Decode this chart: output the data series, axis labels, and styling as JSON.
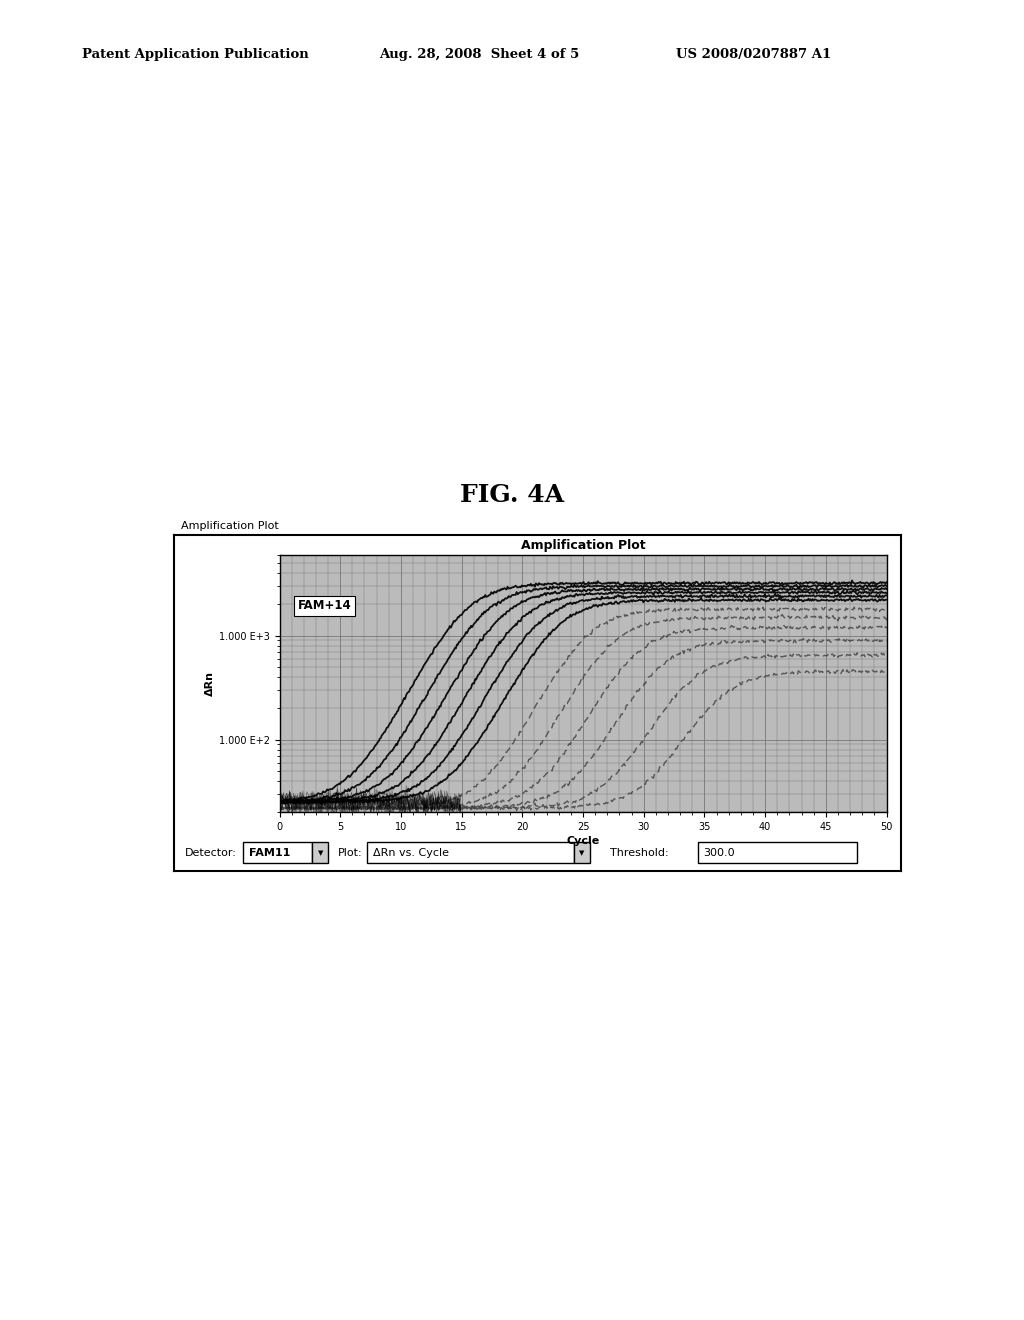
{
  "page_title_left": "Patent Application Publication",
  "page_title_center": "Aug. 28, 2008  Sheet 4 of 5",
  "page_title_right": "US 2008/0207887 A1",
  "fig_label": "FIG. 4A",
  "outer_box_label": "Amplification Plot",
  "inner_title": "Amplification Plot",
  "fam_label": "FAM+14",
  "xlabel": "Cycle",
  "ylabel": "ΔRn",
  "detector_text": "Detector:",
  "detector_val": "FAM11",
  "plot_text": "Plot:",
  "plot_val": "ΔRn vs. Cycle",
  "threshold_text": "Threshold:",
  "threshold_val": "300.0",
  "bg_color": "#ffffff",
  "solid_line_color": "#000000",
  "dashed_line_color": "#555555",
  "threshold_cycle": 14.5,
  "solid_cts": [
    15.0,
    16.5,
    18.0,
    19.5,
    21.0,
    22.5
  ],
  "solid_tops": [
    3200,
    3000,
    2800,
    2600,
    2400,
    2200
  ],
  "dashed_cts": [
    25.0,
    27.0,
    29.0,
    31.0,
    33.5,
    36.0
  ],
  "dashed_tops": [
    1800,
    1500,
    1200,
    900,
    650,
    450
  ]
}
